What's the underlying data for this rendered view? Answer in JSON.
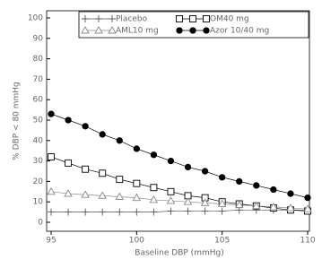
{
  "chart_data": {
    "type": "line",
    "ylabel": "% DBP < 80 mmHg",
    "xlabel": "Baseline DBP (mmHg)",
    "x": [
      95,
      96,
      97,
      98,
      99,
      100,
      101,
      102,
      103,
      104,
      105,
      106,
      107,
      108,
      109,
      110
    ],
    "series": [
      {
        "name": "Placebo",
        "color": "#555555",
        "marker": "plus",
        "values": [
          5,
          5,
          5,
          5,
          5,
          5,
          5,
          5.5,
          5.5,
          5.5,
          5.5,
          6,
          6,
          6,
          6,
          6
        ]
      },
      {
        "name": "OM40 mg",
        "color": "#000000",
        "marker": "square",
        "values": [
          32,
          29,
          26,
          24,
          21,
          19,
          17,
          15,
          13,
          12,
          10,
          9,
          8,
          7,
          6,
          5.5
        ]
      },
      {
        "name": "AML10 mg",
        "color": "#888888",
        "marker": "triangle",
        "values": [
          15,
          14,
          13.5,
          13,
          12.5,
          12,
          11,
          10.5,
          10,
          9.5,
          9,
          8.5,
          8,
          7.5,
          7,
          6.5
        ]
      },
      {
        "name": "Azor 10/40 mg",
        "color": "#000000",
        "marker": "circle",
        "values": [
          53,
          50,
          47,
          43,
          40,
          36,
          33,
          30,
          27,
          25,
          22,
          20,
          18,
          16,
          14,
          12
        ]
      }
    ],
    "xlim": [
      95,
      110
    ],
    "ylim": [
      0,
      100
    ],
    "xticks": [
      95,
      100,
      105,
      110
    ],
    "yticks": [
      0,
      10,
      20,
      30,
      40,
      50,
      60,
      70,
      80,
      90,
      100
    ]
  }
}
